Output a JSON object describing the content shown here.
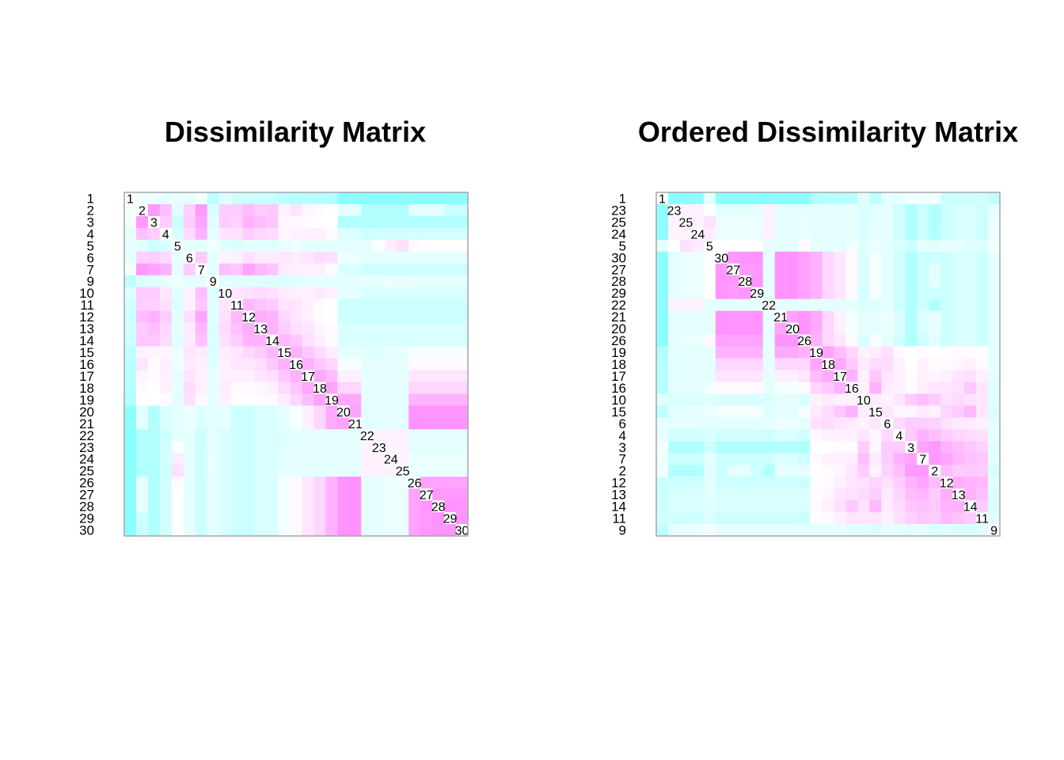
{
  "colors": {
    "low": "#7FFFFF",
    "mid": "#FFFFFF",
    "high": "#FF7FFF",
    "frame": "#a6a6a6",
    "text": "#000000"
  },
  "chart_data": [
    {
      "type": "heatmap",
      "title": "Dissimilarity Matrix",
      "labels": [
        "1",
        "2",
        "3",
        "4",
        "5",
        "6",
        "7",
        "9",
        "10",
        "11",
        "12",
        "13",
        "14",
        "15",
        "16",
        "17",
        "18",
        "19",
        "20",
        "21",
        "22",
        "23",
        "24",
        "25",
        "26",
        "27",
        "28",
        "29",
        "30"
      ],
      "values": [
        [
          0.0,
          0.45,
          0.45,
          0.4,
          0.4,
          0.4,
          0.45,
          0.25,
          0.38,
          0.32,
          0.3,
          0.3,
          0.3,
          0.25,
          0.22,
          0.22,
          0.22,
          0.2,
          0.05,
          0.05,
          0.05,
          0.05,
          0.05,
          0.05,
          0.05,
          0.05,
          0.05,
          0.05,
          0.05
        ],
        [
          0.45,
          0.0,
          0.9,
          0.75,
          0.38,
          0.68,
          0.9,
          0.35,
          0.7,
          0.7,
          0.76,
          0.7,
          0.72,
          0.55,
          0.6,
          0.54,
          0.52,
          0.5,
          0.4,
          0.4,
          0.2,
          0.2,
          0.2,
          0.2,
          0.4,
          0.4,
          0.4,
          0.3,
          0.3
        ],
        [
          0.45,
          0.9,
          0.0,
          0.7,
          0.3,
          0.7,
          0.85,
          0.38,
          0.7,
          0.68,
          0.8,
          0.76,
          0.72,
          0.54,
          0.52,
          0.52,
          0.5,
          0.5,
          0.2,
          0.2,
          0.2,
          0.2,
          0.2,
          0.2,
          0.2,
          0.2,
          0.2,
          0.2,
          0.2
        ],
        [
          0.4,
          0.75,
          0.7,
          0.0,
          0.35,
          0.65,
          0.8,
          0.4,
          0.6,
          0.62,
          0.7,
          0.66,
          0.64,
          0.54,
          0.56,
          0.56,
          0.56,
          0.52,
          0.36,
          0.36,
          0.3,
          0.32,
          0.32,
          0.32,
          0.32,
          0.32,
          0.32,
          0.32,
          0.32
        ],
        [
          0.4,
          0.38,
          0.3,
          0.35,
          0.0,
          0.4,
          0.4,
          0.45,
          0.38,
          0.36,
          0.4,
          0.4,
          0.38,
          0.42,
          0.44,
          0.4,
          0.4,
          0.4,
          0.4,
          0.4,
          0.4,
          0.48,
          0.58,
          0.62,
          0.52,
          0.5,
          0.5,
          0.5,
          0.5
        ],
        [
          0.4,
          0.68,
          0.7,
          0.65,
          0.4,
          0.0,
          0.7,
          0.4,
          0.55,
          0.56,
          0.62,
          0.58,
          0.58,
          0.6,
          0.58,
          0.6,
          0.64,
          0.62,
          0.42,
          0.42,
          0.4,
          0.4,
          0.4,
          0.4,
          0.4,
          0.4,
          0.4,
          0.4,
          0.4
        ],
        [
          0.45,
          0.9,
          0.85,
          0.8,
          0.4,
          0.7,
          0.0,
          0.4,
          0.75,
          0.72,
          0.85,
          0.78,
          0.74,
          0.58,
          0.56,
          0.56,
          0.56,
          0.52,
          0.36,
          0.36,
          0.3,
          0.3,
          0.3,
          0.3,
          0.3,
          0.3,
          0.3,
          0.3,
          0.3
        ],
        [
          0.25,
          0.35,
          0.38,
          0.4,
          0.45,
          0.4,
          0.4,
          0.0,
          0.38,
          0.38,
          0.38,
          0.36,
          0.36,
          0.36,
          0.38,
          0.4,
          0.4,
          0.4,
          0.4,
          0.4,
          0.4,
          0.4,
          0.42,
          0.42,
          0.4,
          0.4,
          0.4,
          0.4,
          0.4
        ],
        [
          0.38,
          0.7,
          0.7,
          0.6,
          0.38,
          0.55,
          0.75,
          0.38,
          0.0,
          0.6,
          0.62,
          0.64,
          0.62,
          0.58,
          0.56,
          0.56,
          0.58,
          0.56,
          0.4,
          0.4,
          0.35,
          0.35,
          0.35,
          0.35,
          0.35,
          0.35,
          0.35,
          0.35,
          0.35
        ],
        [
          0.32,
          0.7,
          0.68,
          0.62,
          0.36,
          0.56,
          0.72,
          0.38,
          0.6,
          0.0,
          0.78,
          0.74,
          0.7,
          0.6,
          0.6,
          0.56,
          0.52,
          0.5,
          0.3,
          0.3,
          0.3,
          0.3,
          0.3,
          0.3,
          0.3,
          0.3,
          0.3,
          0.3,
          0.3
        ],
        [
          0.3,
          0.76,
          0.8,
          0.7,
          0.4,
          0.62,
          0.85,
          0.38,
          0.62,
          0.78,
          0.0,
          0.82,
          0.8,
          0.66,
          0.6,
          0.56,
          0.52,
          0.5,
          0.3,
          0.3,
          0.3,
          0.3,
          0.3,
          0.3,
          0.3,
          0.3,
          0.3,
          0.3,
          0.3
        ],
        [
          0.3,
          0.7,
          0.76,
          0.66,
          0.4,
          0.58,
          0.78,
          0.36,
          0.64,
          0.74,
          0.82,
          0.0,
          0.8,
          0.7,
          0.62,
          0.6,
          0.54,
          0.52,
          0.35,
          0.35,
          0.35,
          0.35,
          0.35,
          0.35,
          0.35,
          0.35,
          0.35,
          0.35,
          0.35
        ],
        [
          0.3,
          0.72,
          0.72,
          0.64,
          0.38,
          0.58,
          0.74,
          0.36,
          0.62,
          0.7,
          0.8,
          0.8,
          0.0,
          0.78,
          0.72,
          0.62,
          0.56,
          0.52,
          0.35,
          0.35,
          0.35,
          0.35,
          0.35,
          0.35,
          0.35,
          0.35,
          0.35,
          0.35,
          0.35
        ],
        [
          0.25,
          0.55,
          0.54,
          0.54,
          0.42,
          0.6,
          0.58,
          0.36,
          0.58,
          0.6,
          0.66,
          0.7,
          0.78,
          0.0,
          0.8,
          0.72,
          0.64,
          0.58,
          0.4,
          0.4,
          0.38,
          0.38,
          0.4,
          0.4,
          0.46,
          0.46,
          0.46,
          0.46,
          0.46
        ],
        [
          0.22,
          0.6,
          0.52,
          0.56,
          0.44,
          0.58,
          0.56,
          0.38,
          0.56,
          0.6,
          0.6,
          0.62,
          0.72,
          0.8,
          0.0,
          0.8,
          0.72,
          0.66,
          0.46,
          0.46,
          0.4,
          0.4,
          0.4,
          0.4,
          0.52,
          0.52,
          0.52,
          0.52,
          0.52
        ],
        [
          0.22,
          0.54,
          0.52,
          0.56,
          0.4,
          0.6,
          0.56,
          0.4,
          0.56,
          0.56,
          0.56,
          0.6,
          0.62,
          0.72,
          0.8,
          0.0,
          0.84,
          0.76,
          0.56,
          0.56,
          0.4,
          0.4,
          0.4,
          0.4,
          0.6,
          0.6,
          0.6,
          0.6,
          0.6
        ],
        [
          0.22,
          0.52,
          0.5,
          0.56,
          0.4,
          0.64,
          0.56,
          0.4,
          0.58,
          0.52,
          0.52,
          0.54,
          0.56,
          0.64,
          0.72,
          0.84,
          0.0,
          0.86,
          0.66,
          0.66,
          0.4,
          0.4,
          0.4,
          0.4,
          0.66,
          0.66,
          0.66,
          0.66,
          0.66
        ],
        [
          0.2,
          0.5,
          0.5,
          0.52,
          0.4,
          0.62,
          0.52,
          0.4,
          0.56,
          0.5,
          0.5,
          0.52,
          0.52,
          0.58,
          0.66,
          0.76,
          0.86,
          0.0,
          0.84,
          0.84,
          0.4,
          0.4,
          0.4,
          0.4,
          0.8,
          0.8,
          0.8,
          0.8,
          0.8
        ],
        [
          0.05,
          0.4,
          0.2,
          0.36,
          0.4,
          0.42,
          0.36,
          0.4,
          0.4,
          0.3,
          0.3,
          0.35,
          0.35,
          0.4,
          0.46,
          0.56,
          0.66,
          0.84,
          0.0,
          0.86,
          0.4,
          0.4,
          0.4,
          0.4,
          0.92,
          0.92,
          0.92,
          0.92,
          0.92
        ],
        [
          0.05,
          0.4,
          0.2,
          0.36,
          0.4,
          0.42,
          0.36,
          0.4,
          0.4,
          0.3,
          0.3,
          0.35,
          0.35,
          0.4,
          0.46,
          0.56,
          0.66,
          0.84,
          0.86,
          0.0,
          0.4,
          0.4,
          0.4,
          0.4,
          0.92,
          0.92,
          0.92,
          0.92,
          0.92
        ],
        [
          0.05,
          0.2,
          0.2,
          0.3,
          0.4,
          0.4,
          0.3,
          0.4,
          0.35,
          0.3,
          0.3,
          0.35,
          0.35,
          0.38,
          0.4,
          0.4,
          0.4,
          0.4,
          0.4,
          0.4,
          0.0,
          0.55,
          0.55,
          0.55,
          0.4,
          0.4,
          0.4,
          0.4,
          0.4
        ],
        [
          0.05,
          0.2,
          0.2,
          0.32,
          0.48,
          0.4,
          0.3,
          0.4,
          0.35,
          0.3,
          0.3,
          0.35,
          0.35,
          0.38,
          0.4,
          0.4,
          0.4,
          0.4,
          0.4,
          0.4,
          0.55,
          0.0,
          0.55,
          0.55,
          0.4,
          0.4,
          0.4,
          0.4,
          0.4
        ],
        [
          0.05,
          0.2,
          0.2,
          0.32,
          0.58,
          0.4,
          0.3,
          0.42,
          0.35,
          0.3,
          0.3,
          0.35,
          0.35,
          0.4,
          0.4,
          0.4,
          0.4,
          0.4,
          0.4,
          0.4,
          0.55,
          0.55,
          0.0,
          0.55,
          0.42,
          0.42,
          0.42,
          0.42,
          0.42
        ],
        [
          0.05,
          0.2,
          0.2,
          0.32,
          0.62,
          0.4,
          0.3,
          0.42,
          0.35,
          0.3,
          0.3,
          0.35,
          0.35,
          0.4,
          0.4,
          0.4,
          0.4,
          0.4,
          0.4,
          0.4,
          0.55,
          0.55,
          0.55,
          0.0,
          0.42,
          0.42,
          0.42,
          0.42,
          0.42
        ],
        [
          0.05,
          0.4,
          0.2,
          0.32,
          0.52,
          0.4,
          0.3,
          0.4,
          0.35,
          0.3,
          0.3,
          0.35,
          0.35,
          0.46,
          0.52,
          0.6,
          0.66,
          0.8,
          0.92,
          0.92,
          0.4,
          0.4,
          0.42,
          0.42,
          0.0,
          0.86,
          0.86,
          0.86,
          0.86
        ],
        [
          0.05,
          0.4,
          0.2,
          0.32,
          0.5,
          0.4,
          0.3,
          0.4,
          0.35,
          0.3,
          0.3,
          0.35,
          0.35,
          0.46,
          0.52,
          0.6,
          0.66,
          0.8,
          0.92,
          0.92,
          0.4,
          0.4,
          0.42,
          0.42,
          0.86,
          0.0,
          0.9,
          0.9,
          0.9
        ],
        [
          0.05,
          0.4,
          0.2,
          0.32,
          0.5,
          0.4,
          0.3,
          0.4,
          0.35,
          0.3,
          0.3,
          0.35,
          0.35,
          0.46,
          0.52,
          0.6,
          0.66,
          0.8,
          0.92,
          0.92,
          0.4,
          0.4,
          0.42,
          0.42,
          0.86,
          0.9,
          0.0,
          0.92,
          0.92
        ],
        [
          0.05,
          0.3,
          0.2,
          0.32,
          0.5,
          0.4,
          0.3,
          0.4,
          0.35,
          0.3,
          0.3,
          0.35,
          0.35,
          0.46,
          0.52,
          0.6,
          0.66,
          0.8,
          0.92,
          0.92,
          0.4,
          0.4,
          0.42,
          0.42,
          0.86,
          0.9,
          0.92,
          0.0,
          0.92
        ],
        [
          0.05,
          0.3,
          0.2,
          0.32,
          0.5,
          0.4,
          0.3,
          0.4,
          0.35,
          0.3,
          0.3,
          0.35,
          0.35,
          0.46,
          0.52,
          0.6,
          0.66,
          0.8,
          0.92,
          0.92,
          0.4,
          0.4,
          0.42,
          0.42,
          0.86,
          0.9,
          0.92,
          0.92,
          0.0
        ]
      ]
    },
    {
      "type": "heatmap",
      "title": "Ordered Dissimilarity Matrix",
      "labels": [
        "1",
        "23",
        "25",
        "24",
        "5",
        "30",
        "27",
        "28",
        "29",
        "22",
        "21",
        "20",
        "26",
        "19",
        "18",
        "17",
        "16",
        "10",
        "15",
        "6",
        "4",
        "3",
        "7",
        "2",
        "12",
        "13",
        "14",
        "11",
        "9"
      ]
    }
  ]
}
